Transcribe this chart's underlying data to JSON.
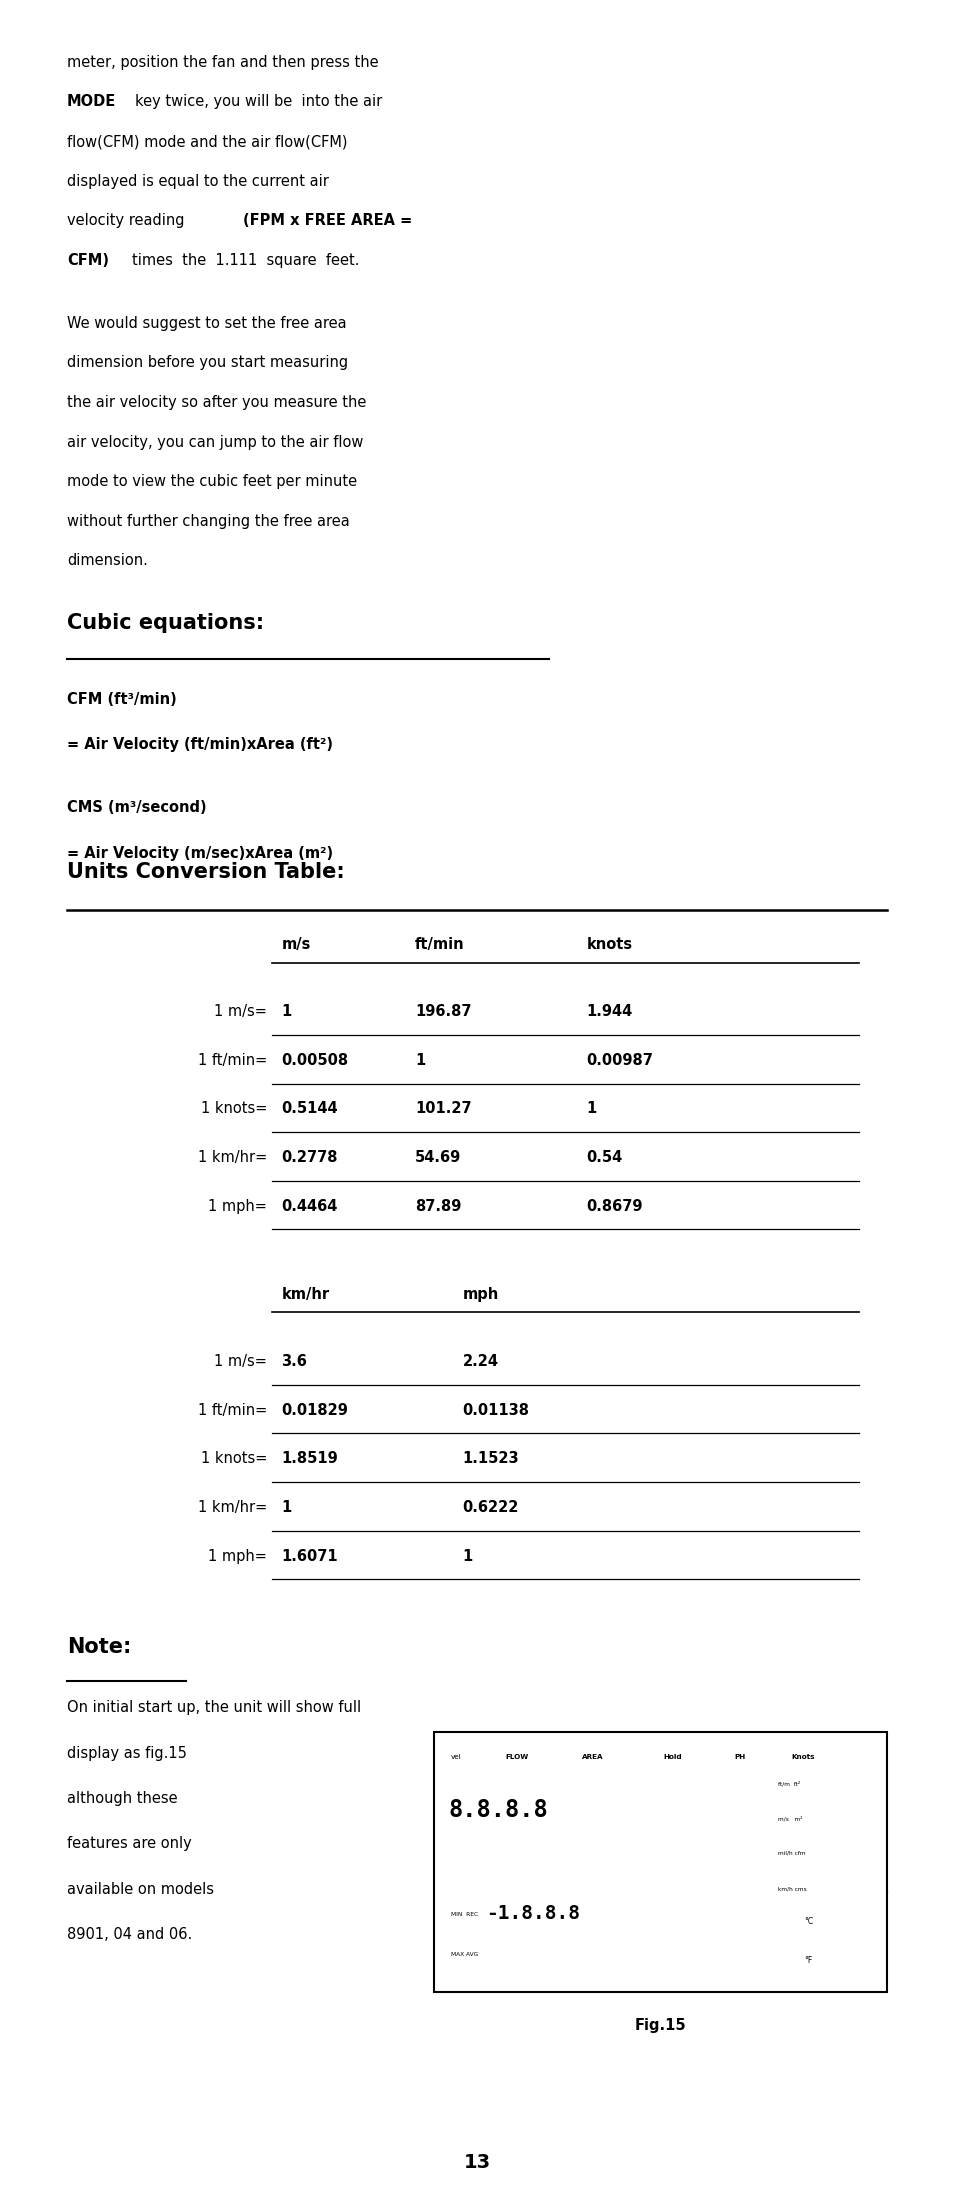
{
  "bg_color": "#ffffff",
  "text_color": "#000000",
  "page_width": 9.54,
  "page_height": 21.97,
  "intro_paragraph2": [
    "We would suggest to set the free area",
    "dimension before you start measuring",
    "the air velocity so after you measure the",
    "air velocity, you can jump to the air flow",
    "mode to view the cubic feet per minute",
    "without further changing the free area",
    "dimension."
  ],
  "section_title": "Cubic equations:",
  "cfm_line1": "CFM (ft³/min)",
  "cfm_line2": "= Air Velocity (ft/min)xArea (ft²)",
  "cms_line1": "CMS (m³/second)",
  "cms_line2": "= Air Velocity (m/sec)xArea (m²)",
  "table_title": "Units Conversion Table:",
  "table1_headers": [
    "m/s",
    "ft/min",
    "knots"
  ],
  "table1_rows": [
    [
      "1 m/s=",
      "1",
      "196.87",
      "1.944"
    ],
    [
      "1 ft/min=",
      "0.00508",
      "1",
      "0.00987"
    ],
    [
      "1 knots=",
      "0.5144",
      "101.27",
      "1"
    ],
    [
      "1 km/hr=",
      "0.2778",
      "54.69",
      "0.54"
    ],
    [
      "1 mph=",
      "0.4464",
      "87.89",
      "0.8679"
    ]
  ],
  "table2_headers": [
    "km/hr",
    "mph"
  ],
  "table2_rows": [
    [
      "1 m/s=",
      "3.6",
      "2.24"
    ],
    [
      "1 ft/min=",
      "0.01829",
      "0.01138"
    ],
    [
      "1 knots=",
      "1.8519",
      "1.1523"
    ],
    [
      "1 km/hr=",
      "1",
      "0.6222"
    ],
    [
      "1 mph=",
      "1.6071",
      "1"
    ]
  ],
  "note_title": "Note:",
  "note_text1": "On initial start up, the unit will show full",
  "note_text2": "display as fig.15",
  "note_text3": "although these",
  "note_text4": "features are only",
  "note_text5": "available on models",
  "note_text6": "8901, 04 and 06.",
  "fig_label": "Fig.15",
  "page_number": "13"
}
